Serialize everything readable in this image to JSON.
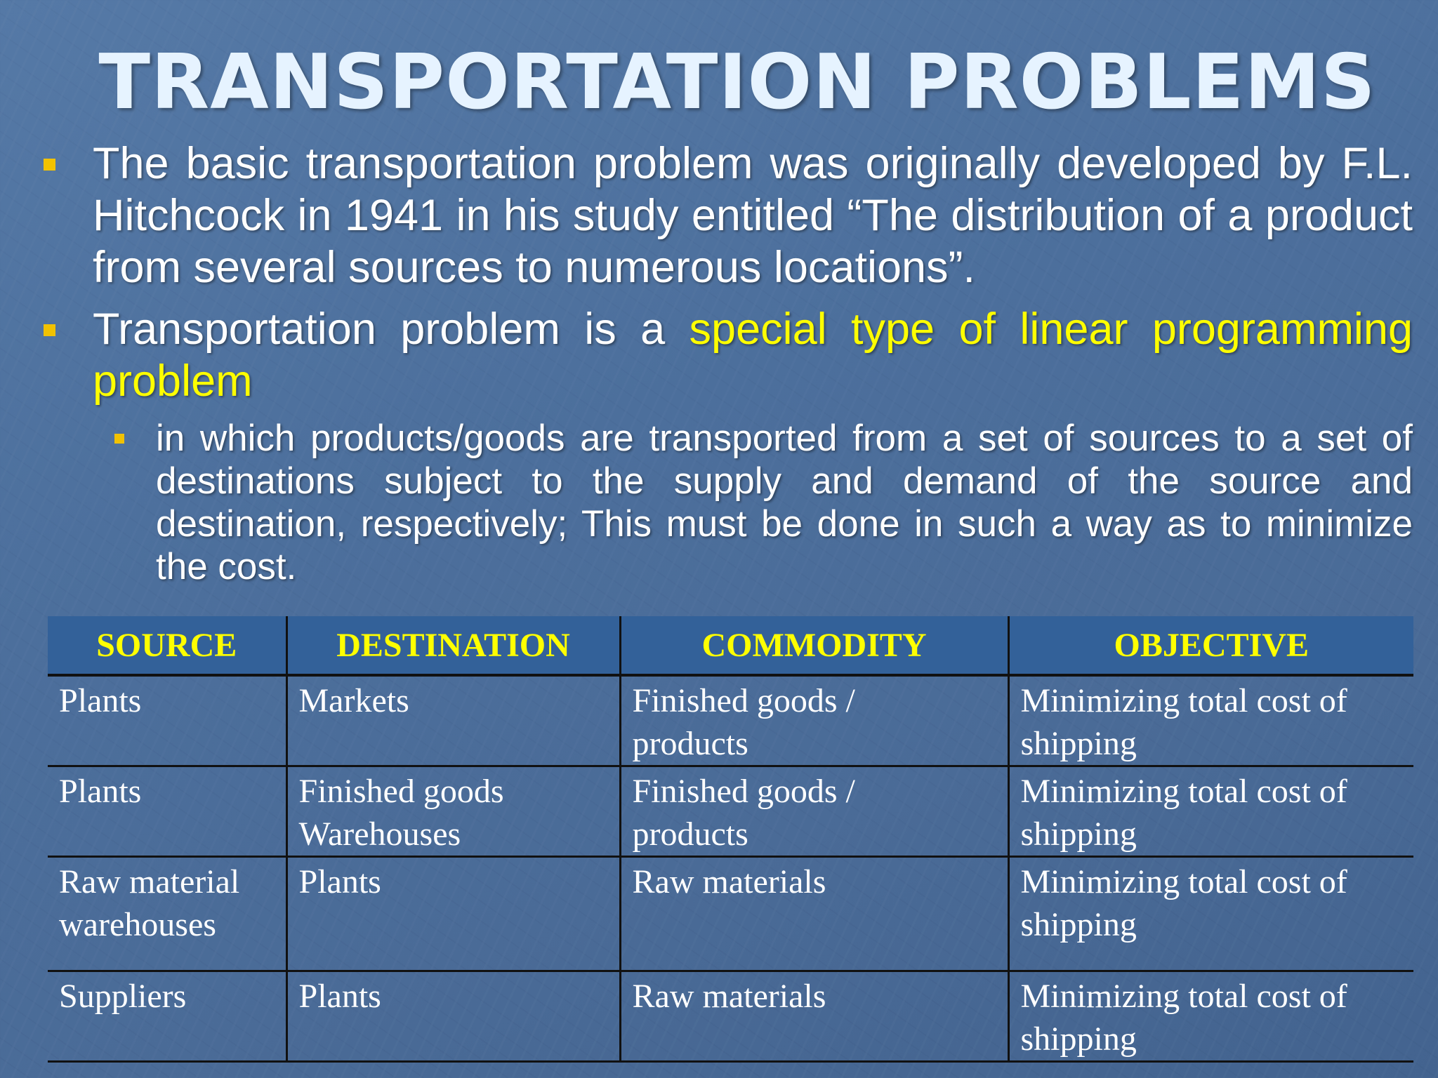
{
  "title": "TRANSPORTATION PROBLEMS",
  "bullets": [
    {
      "text": "The basic transportation problem was originally developed by F.L. Hitchcock in 1941 in his study entitled “The distribution of a product from several sources to numerous locations”."
    },
    {
      "text_plain": "Transportation problem is a ",
      "text_highlight": "special type of linear programming problem"
    }
  ],
  "sub_bullet": "in which products/goods are transported from a set of sources to a set of destinations subject to the supply and demand of the source and destination, respectively; This must be done in such a way as to minimize the cost.",
  "colors": {
    "highlight": "#ffff00",
    "bullet": "#f2c200",
    "header_bg": "#336199"
  },
  "table": {
    "headers": [
      "SOURCE",
      "DESTINATION",
      "COMMODITY",
      "OBJECTIVE"
    ],
    "rows": [
      [
        "Plants",
        "Markets",
        "Finished goods / products",
        "Minimizing total cost of shipping"
      ],
      [
        "Plants",
        "Finished goods Warehouses",
        "Finished goods / products",
        "Minimizing total cost of shipping"
      ],
      [
        "Raw material warehouses",
        "Plants",
        "Raw materials",
        "Minimizing total cost of shipping"
      ],
      [
        "Suppliers",
        "Plants",
        "Raw materials",
        "Minimizing total cost of shipping"
      ]
    ]
  }
}
